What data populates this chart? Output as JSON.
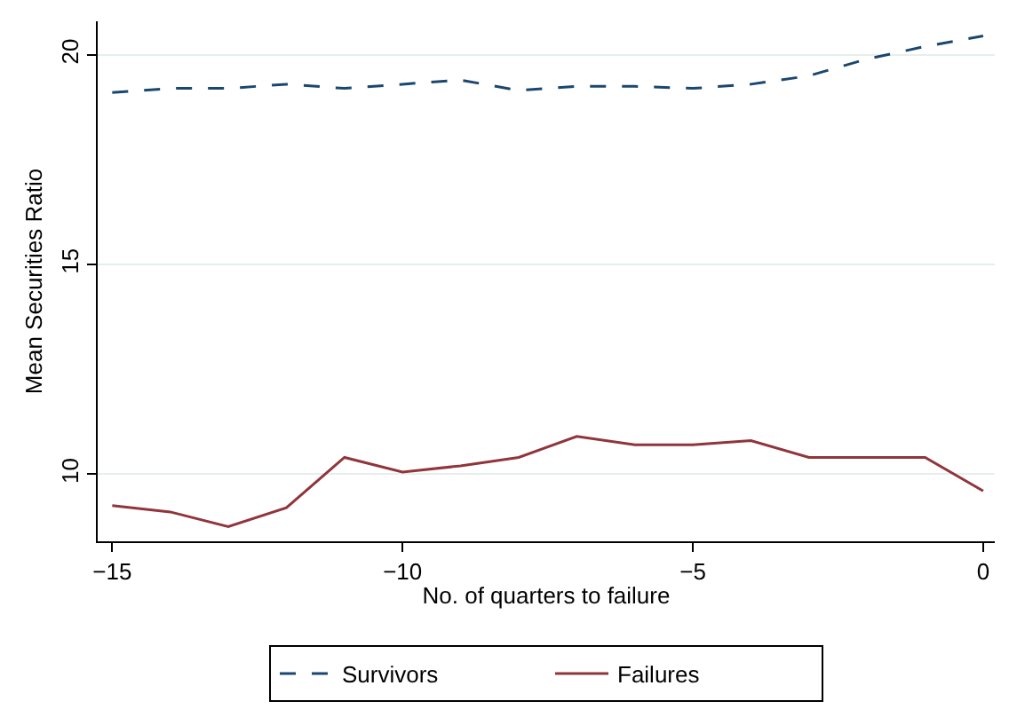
{
  "chart_data": {
    "type": "line",
    "xlabel": "No. of quarters to failure",
    "ylabel": "Mean Securities Ratio",
    "x": [
      -15,
      -14,
      -13,
      -12,
      -11,
      -10,
      -9,
      -8,
      -7,
      -6,
      -5,
      -4,
      -3,
      -2,
      -1,
      0
    ],
    "series": [
      {
        "name": "Survivors",
        "color": "#1a476f",
        "line_style": "dashed",
        "values": [
          19.1,
          19.2,
          19.2,
          19.3,
          19.2,
          19.3,
          19.4,
          19.15,
          19.25,
          19.25,
          19.2,
          19.3,
          19.5,
          19.9,
          20.2,
          20.45
        ]
      },
      {
        "name": "Failures",
        "color": "#90353b",
        "line_style": "solid",
        "values": [
          9.25,
          9.1,
          8.75,
          9.2,
          10.4,
          10.05,
          10.2,
          10.4,
          10.9,
          10.7,
          10.7,
          10.8,
          10.4,
          10.4,
          10.4,
          9.6
        ]
      }
    ],
    "xlim": [
      -15.25,
      0.2
    ],
    "ylim": [
      8.4,
      20.8
    ],
    "xticks": [
      {
        "value": -15,
        "label": "−15"
      },
      {
        "value": -10,
        "label": "−10"
      },
      {
        "value": -5,
        "label": "−5"
      },
      0
    ],
    "yticks": [
      10,
      15,
      20
    ],
    "grid": "y",
    "legend": "bottom",
    "marker": "none"
  }
}
